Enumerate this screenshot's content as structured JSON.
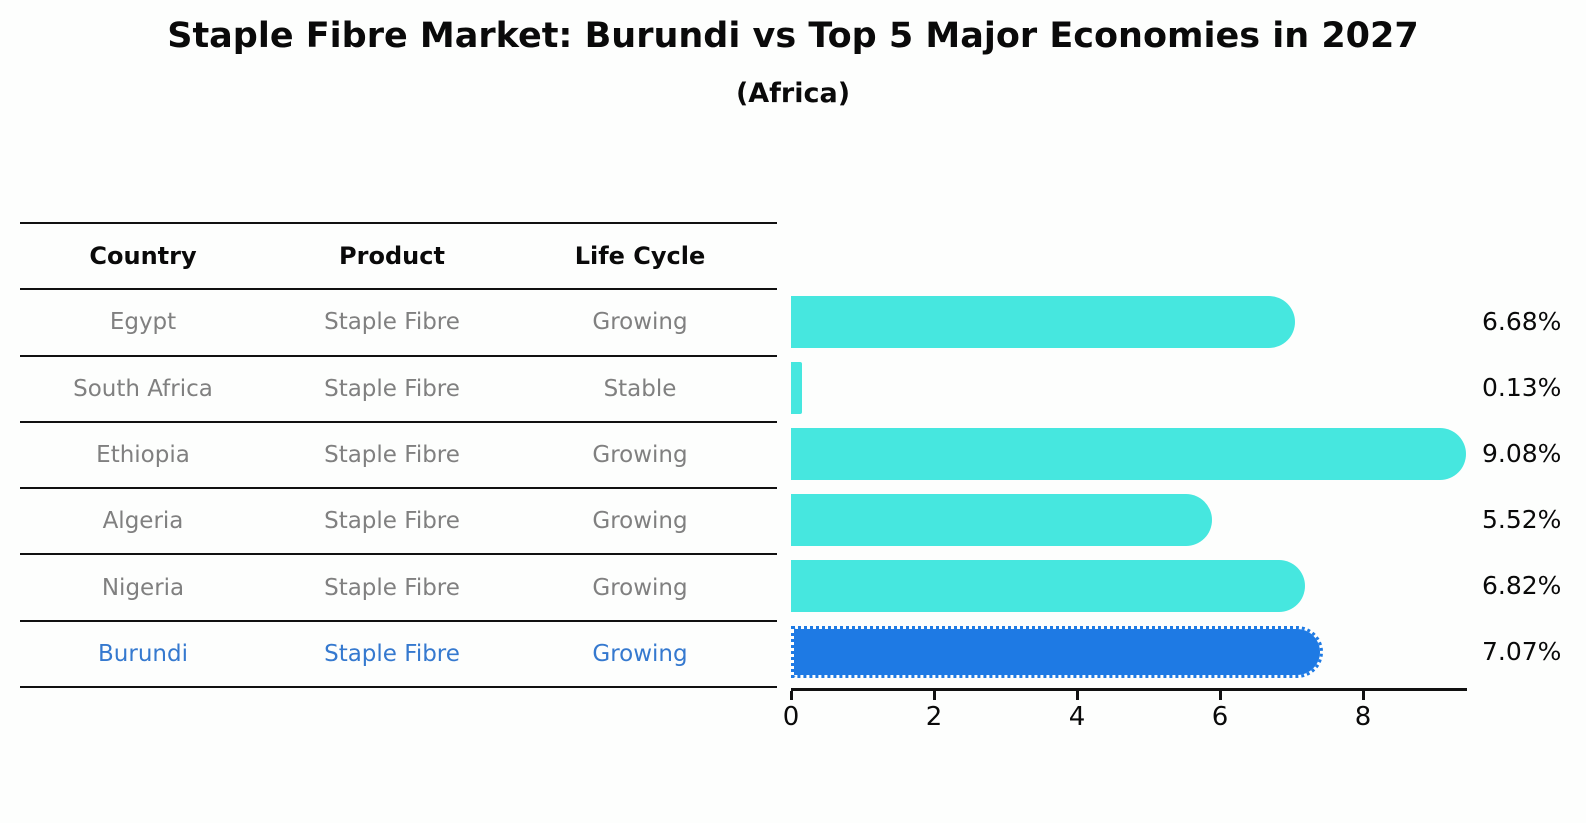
{
  "title": "Staple Fibre Market: Burundi vs Top 5 Major Economies in 2027",
  "subtitle": "(Africa)",
  "table": {
    "headers": [
      "Country",
      "Product",
      "Life Cycle"
    ],
    "rows": [
      {
        "country": "Egypt",
        "product": "Staple Fibre",
        "life_cycle": "Growing",
        "highlighted": false
      },
      {
        "country": "South Africa",
        "product": "Staple Fibre",
        "life_cycle": "Stable",
        "highlighted": false
      },
      {
        "country": "Ethiopia",
        "product": "Staple Fibre",
        "life_cycle": "Growing",
        "highlighted": false
      },
      {
        "country": "Algeria",
        "product": "Staple Fibre",
        "life_cycle": "Growing",
        "highlighted": false
      },
      {
        "country": "Nigeria",
        "product": "Staple Fibre",
        "life_cycle": "Growing",
        "highlighted": false
      },
      {
        "country": "Burundi",
        "product": "Staple Fibre",
        "life_cycle": "Growing",
        "highlighted": true
      }
    ]
  },
  "chart_data": {
    "type": "bar",
    "orientation": "horizontal",
    "title": "Staple Fibre Market: Burundi vs Top 5 Major Economies in 2027 (Africa)",
    "categories": [
      "Egypt",
      "South Africa",
      "Ethiopia",
      "Algeria",
      "Nigeria",
      "Burundi"
    ],
    "values": [
      6.68,
      0.13,
      9.08,
      5.52,
      6.82,
      7.07
    ],
    "value_labels": [
      "6.68%",
      "0.13%",
      "9.08%",
      "5.52%",
      "6.82%",
      "7.07%"
    ],
    "xlabel": "",
    "ylabel": "",
    "xticks": [
      0,
      2,
      4,
      6,
      8
    ],
    "xlim": [
      0,
      9.4
    ],
    "grid": false,
    "legend": "none",
    "bar_color": "#46E7DF",
    "highlight_color": "#1E7AE4",
    "highlight_index": 5,
    "highlight_border": "dotted",
    "text_color_highlight": "#3579cf",
    "text_color_muted": "#808080"
  }
}
